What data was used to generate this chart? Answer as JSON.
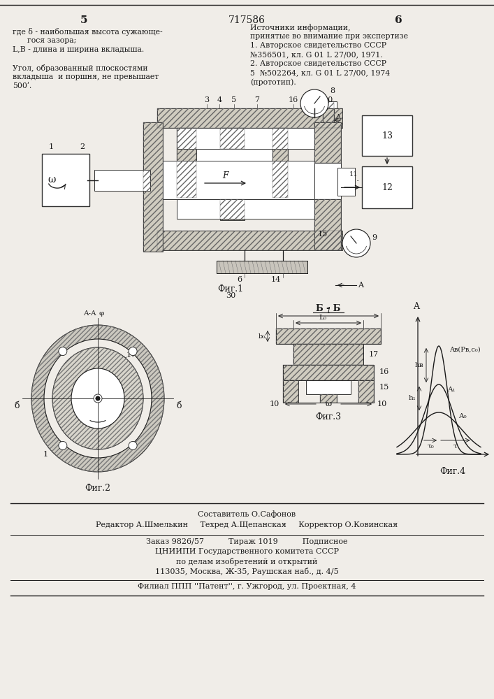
{
  "page_title": "717586",
  "page_left_num": "5",
  "page_right_num": "6",
  "bg_color": "#f0ede8",
  "text_color": "#1a1a1a",
  "left_text_block": [
    "где δ - наибольшая высота сужающе-",
    "      гося зазора;",
    "L,B - длина и ширина вкладыша.",
    "",
    "Угол, образованный плоскостями",
    "вкладыша  и поршня, не превышает",
    "500ʹ."
  ],
  "right_text_block": [
    "Источники информации,",
    "принятые во внимание при экспертизе",
    "1. Авторское свидетельство СССР",
    "№356501, кл. G 01 L 27/00, 1971.",
    "2. Авторское свидетельство СССР",
    "5  №502264, кл. G 01 L 27/00, 1974",
    "(прототип)."
  ],
  "footer_lines": [
    "Составитель О.Сафонов",
    "Редактор А.Шмелькин     Техред А.Щепанская     Корректор О.Ковинская",
    "Заказ 9826/57          Тираж 1019          Подписное",
    "ЦНИИПИ Государственного комитета СССР",
    "по делам изобретений и открытий",
    "113035, Москва, Ж-35, Раушская наб., д. 4/5",
    "Филиал ППП ''Патент'', г. Ужгород, ул. Проектная, 4"
  ],
  "fig1_caption": "Фиг.1",
  "fig1_sub": "30",
  "fig2_caption": "Фиг.2",
  "fig3_caption": "Фиг.3",
  "fig4_caption": "Фиг.4"
}
